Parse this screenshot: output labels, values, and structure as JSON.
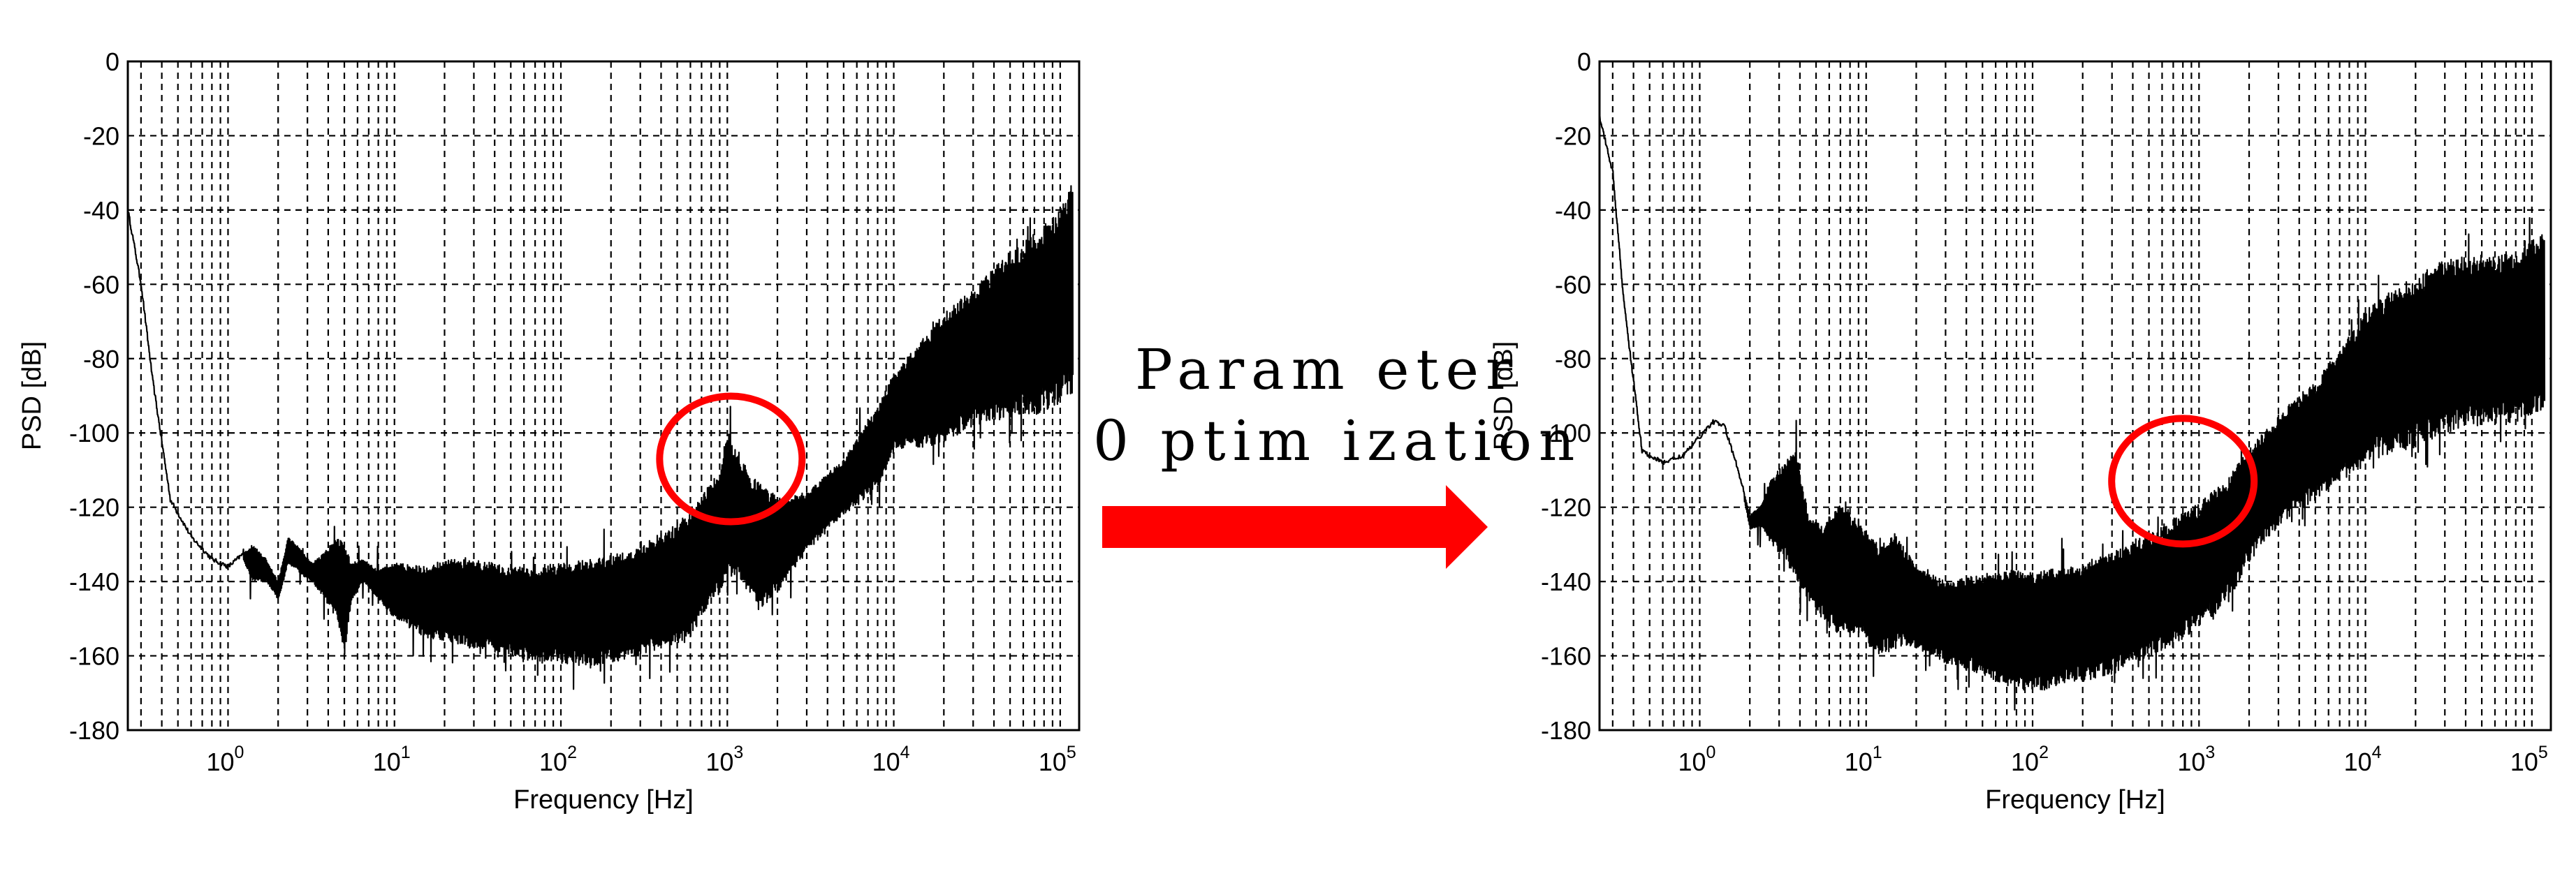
{
  "annotation": {
    "line1": "Param eter",
    "line2": "0 ptim ization",
    "arrow_color": "#ff0000",
    "circle_color": "#ff0000"
  },
  "chart_data": [
    {
      "type": "line",
      "title": "",
      "xlabel": "Frequency [Hz]",
      "ylabel": "PSD [dB]",
      "xscale": "log",
      "xlim": [
        0.25,
        130000
      ],
      "ylim": [
        -180,
        0
      ],
      "yticks": [
        0,
        -20,
        -40,
        -60,
        -80,
        -100,
        -120,
        -140,
        -160,
        -180
      ],
      "xticks": [
        {
          "value": 1,
          "base": "10",
          "exp": "0"
        },
        {
          "value": 10,
          "base": "10",
          "exp": "1"
        },
        {
          "value": 100,
          "base": "10",
          "exp": "2"
        },
        {
          "value": 1000,
          "base": "10",
          "exp": "3"
        },
        {
          "value": 10000,
          "base": "10",
          "exp": "4"
        },
        {
          "value": 100000,
          "base": "10",
          "exp": "5"
        }
      ],
      "grid": true,
      "line_color": "#000000",
      "series": [
        {
          "x": [
            0.25,
            0.3,
            0.35,
            0.45,
            0.6,
            0.8,
            1.0,
            1.2,
            1.4,
            1.7,
            2.0,
            2.3,
            2.7,
            3.2,
            3.8,
            4.5,
            5.0,
            5.5,
            6.5,
            8,
            10,
            15,
            20,
            30,
            50,
            70,
            100,
            150,
            200,
            300,
            400,
            500,
            600,
            700,
            800,
            900,
            1000,
            1200,
            1500,
            2000,
            3000,
            5000,
            8000,
            10000,
            20000,
            30000,
            50000,
            80000,
            100000,
            120000
          ],
          "y_upper": [
            -40,
            -60,
            -85,
            -118,
            -128,
            -134,
            -136,
            -133,
            -130,
            -134,
            -140,
            -128,
            -131,
            -135,
            -132,
            -128,
            -130,
            -135,
            -134,
            -137,
            -135,
            -136,
            -134,
            -134,
            -136,
            -136,
            -135,
            -134,
            -133,
            -130,
            -127,
            -124,
            -121,
            -117,
            -113,
            -110,
            -99,
            -107,
            -113,
            -117,
            -116,
            -107,
            -93,
            -84,
            -68,
            -61,
            -51,
            -44,
            -40,
            -32
          ],
          "y_lower": [
            -40,
            -60,
            -85,
            -118,
            -128,
            -134,
            -136,
            -133,
            -140,
            -140,
            -145,
            -135,
            -138,
            -140,
            -145,
            -150,
            -160,
            -145,
            -140,
            -145,
            -150,
            -155,
            -156,
            -158,
            -160,
            -162,
            -162,
            -163,
            -162,
            -160,
            -158,
            -157,
            -155,
            -150,
            -145,
            -143,
            -138,
            -140,
            -148,
            -143,
            -132,
            -122,
            -115,
            -105,
            -103,
            -98,
            -96,
            -95,
            -92,
            -90
          ]
        }
      ],
      "annotations": [
        {
          "type": "circle",
          "x": 1050,
          "y": -107,
          "color": "#ff0000"
        }
      ]
    },
    {
      "type": "line",
      "title": "",
      "xlabel": "Frequency [Hz]",
      "ylabel": "PSD [dB]",
      "xscale": "log",
      "xlim": [
        0.25,
        130000
      ],
      "ylim": [
        -180,
        0
      ],
      "yticks": [
        0,
        -20,
        -40,
        -60,
        -80,
        -100,
        -120,
        -140,
        -160,
        -180
      ],
      "xticks": [
        {
          "value": 1,
          "base": "10",
          "exp": "0"
        },
        {
          "value": 10,
          "base": "10",
          "exp": "1"
        },
        {
          "value": 100,
          "base": "10",
          "exp": "2"
        },
        {
          "value": 1000,
          "base": "10",
          "exp": "3"
        },
        {
          "value": 10000,
          "base": "10",
          "exp": "4"
        },
        {
          "value": 100000,
          "base": "10",
          "exp": "5"
        }
      ],
      "grid": true,
      "line_color": "#000000",
      "series": [
        {
          "x": [
            0.25,
            0.3,
            0.35,
            0.45,
            0.6,
            0.8,
            1.0,
            1.2,
            1.4,
            1.7,
            2.0,
            2.3,
            2.7,
            3.2,
            3.8,
            4.5,
            5.5,
            7,
            9,
            12,
            15,
            20,
            30,
            50,
            70,
            100,
            150,
            200,
            300,
            500,
            700,
            1000,
            1500,
            2000,
            3000,
            5000,
            8000,
            10000,
            15000,
            20000,
            30000,
            50000,
            80000,
            100000,
            120000
          ],
          "y_upper": [
            -15,
            -30,
            -65,
            -105,
            -108,
            -106,
            -101,
            -97,
            -98,
            -110,
            -122,
            -120,
            -112,
            -108,
            -104,
            -122,
            -125,
            -118,
            -124,
            -130,
            -127,
            -136,
            -140,
            -138,
            -137,
            -137,
            -136,
            -135,
            -132,
            -127,
            -123,
            -119,
            -112,
            -104,
            -95,
            -86,
            -74,
            -67,
            -61,
            -58,
            -53,
            -52,
            -52,
            -48,
            -46
          ],
          "y_lower": [
            -15,
            -30,
            -65,
            -105,
            -108,
            -106,
            -101,
            -97,
            -98,
            -110,
            -126,
            -125,
            -130,
            -134,
            -140,
            -145,
            -150,
            -155,
            -155,
            -160,
            -158,
            -158,
            -162,
            -165,
            -168,
            -170,
            -168,
            -167,
            -165,
            -160,
            -157,
            -153,
            -145,
            -135,
            -125,
            -118,
            -112,
            -108,
            -105,
            -104,
            -100,
            -98,
            -97,
            -95,
            -95
          ]
        }
      ],
      "annotations": [
        {
          "type": "circle",
          "x": 800,
          "y": -113,
          "color": "#ff0000"
        }
      ]
    }
  ]
}
